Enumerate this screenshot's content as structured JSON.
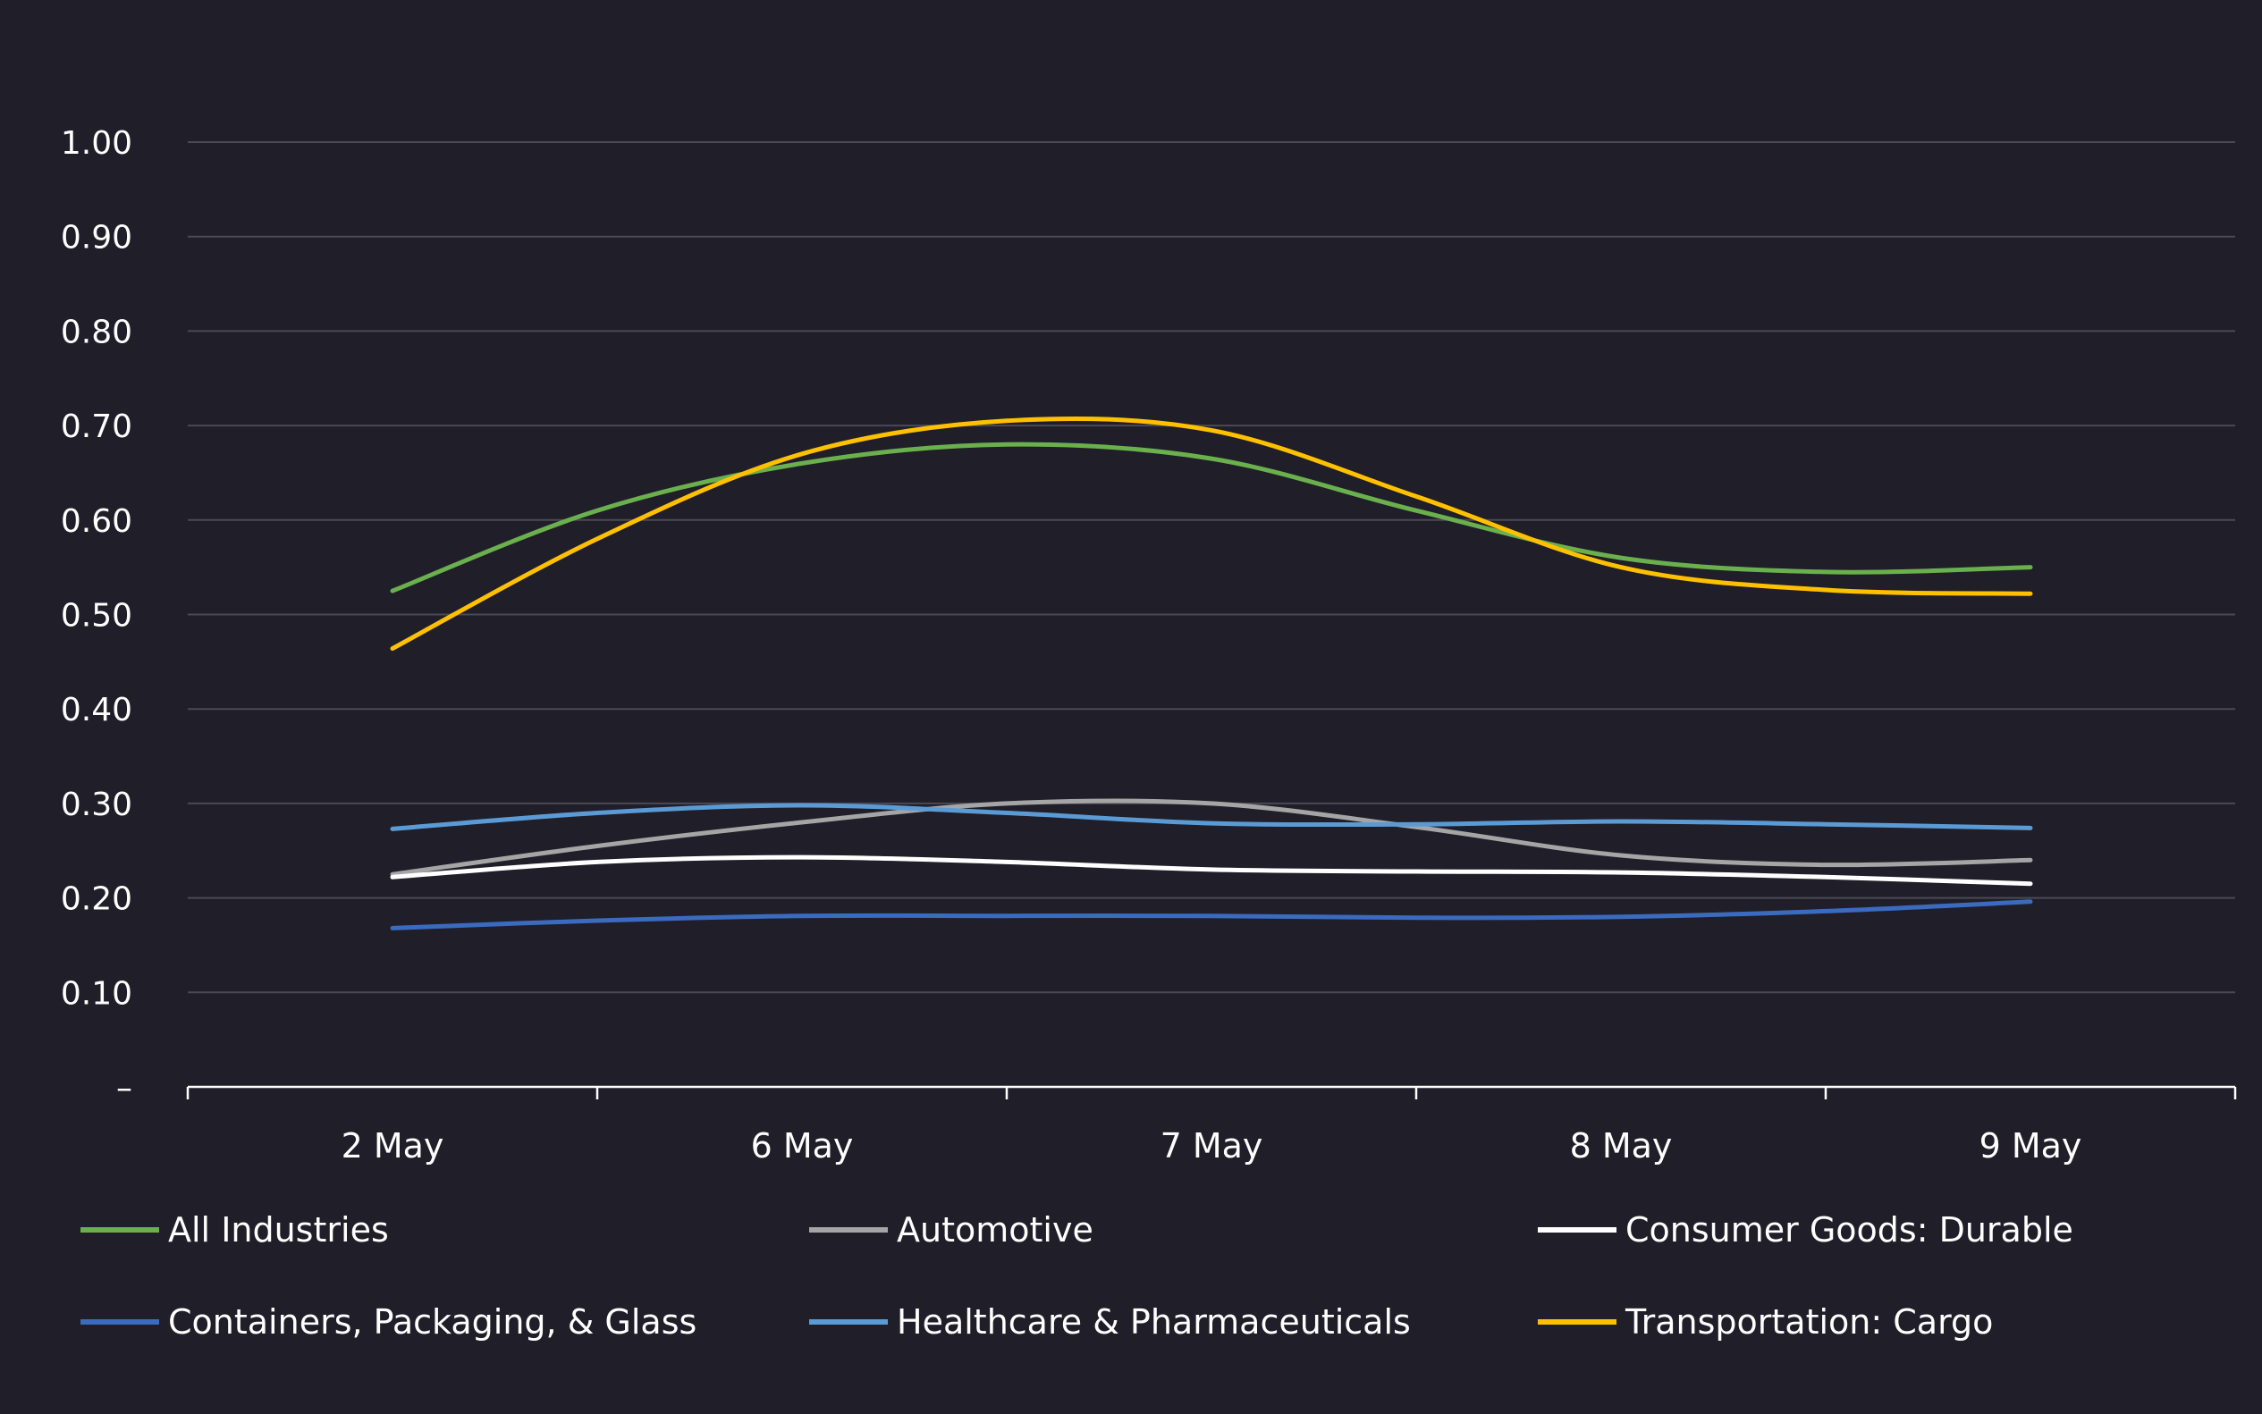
{
  "chart_data": {
    "type": "line",
    "title": "",
    "xlabel": "",
    "ylabel": "",
    "categories": [
      "2 May",
      "6 May",
      "7 May",
      "8 May",
      "9 May"
    ],
    "y_tick_labels": [
      "–",
      "0.10",
      "0.20",
      "0.30",
      "0.40",
      "0.50",
      "0.60",
      "0.70",
      "0.80",
      "0.90",
      "1.00"
    ],
    "ylim": [
      0,
      1.0
    ],
    "grid": true,
    "legend_position": "bottom",
    "series": [
      {
        "name": "All Industries",
        "color": "#6ab04c",
        "values": [
          0.525,
          0.66,
          0.665,
          0.56,
          0.55
        ],
        "curve": [
          [
            0,
            0.525
          ],
          [
            0.5,
            0.61
          ],
          [
            1,
            0.66
          ],
          [
            1.5,
            0.68
          ],
          [
            2,
            0.665
          ],
          [
            2.5,
            0.61
          ],
          [
            3,
            0.56
          ],
          [
            3.5,
            0.545
          ],
          [
            4,
            0.55
          ]
        ]
      },
      {
        "name": "Automotive",
        "color": "#a5a5a5",
        "values": [
          0.225,
          0.28,
          0.3,
          0.245,
          0.24
        ],
        "curve": [
          [
            0,
            0.225
          ],
          [
            0.5,
            0.255
          ],
          [
            1,
            0.28
          ],
          [
            1.5,
            0.3
          ],
          [
            2,
            0.3
          ],
          [
            2.5,
            0.275
          ],
          [
            3,
            0.245
          ],
          [
            3.5,
            0.235
          ],
          [
            4,
            0.24
          ]
        ]
      },
      {
        "name": "Consumer Goods: Durable",
        "color": "#ffffff",
        "values": [
          0.222,
          0.243,
          0.23,
          0.227,
          0.215
        ],
        "curve": [
          [
            0,
            0.222
          ],
          [
            0.5,
            0.238
          ],
          [
            1,
            0.243
          ],
          [
            1.5,
            0.238
          ],
          [
            2,
            0.23
          ],
          [
            2.5,
            0.228
          ],
          [
            3,
            0.227
          ],
          [
            3.5,
            0.222
          ],
          [
            4,
            0.215
          ]
        ]
      },
      {
        "name": "Containers, Packaging, & Glass",
        "color": "#3a6bbf",
        "values": [
          0.168,
          0.181,
          0.181,
          0.18,
          0.196
        ],
        "curve": [
          [
            0,
            0.168
          ],
          [
            0.5,
            0.176
          ],
          [
            1,
            0.181
          ],
          [
            1.5,
            0.181
          ],
          [
            2,
            0.181
          ],
          [
            2.5,
            0.179
          ],
          [
            3,
            0.18
          ],
          [
            3.5,
            0.186
          ],
          [
            4,
            0.196
          ]
        ]
      },
      {
        "name": "Healthcare & Pharmaceuticals",
        "color": "#5b9bd5",
        "values": [
          0.273,
          0.298,
          0.279,
          0.281,
          0.274
        ],
        "curve": [
          [
            0,
            0.273
          ],
          [
            0.5,
            0.29
          ],
          [
            1,
            0.298
          ],
          [
            1.5,
            0.29
          ],
          [
            2,
            0.279
          ],
          [
            2.5,
            0.278
          ],
          [
            3,
            0.281
          ],
          [
            3.5,
            0.278
          ],
          [
            4,
            0.274
          ]
        ]
      },
      {
        "name": "Transportation: Cargo",
        "color": "#ffc000",
        "values": [
          0.464,
          0.67,
          0.695,
          0.55,
          0.522
        ],
        "curve": [
          [
            0,
            0.464
          ],
          [
            0.5,
            0.58
          ],
          [
            1,
            0.67
          ],
          [
            1.5,
            0.705
          ],
          [
            2,
            0.695
          ],
          [
            2.5,
            0.625
          ],
          [
            3,
            0.55
          ],
          [
            3.5,
            0.526
          ],
          [
            4,
            0.522
          ]
        ]
      }
    ]
  }
}
